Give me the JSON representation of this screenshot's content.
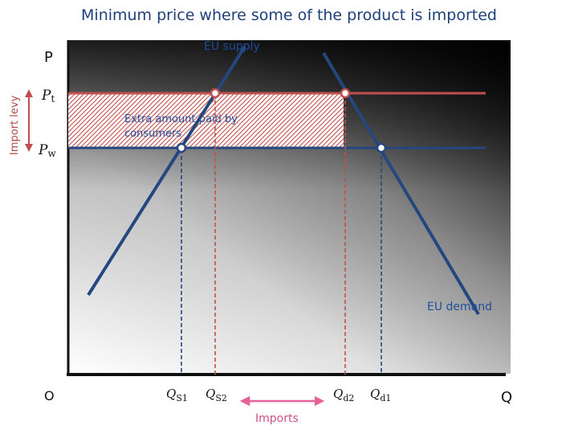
{
  "title": "Minimum price where some of the product is imported",
  "axes": {
    "y_label": "P",
    "x_label": "Q",
    "origin_label": "O"
  },
  "prices": {
    "pt": {
      "base": "P",
      "sub": "t"
    },
    "pw": {
      "base": "P",
      "sub": "w"
    }
  },
  "levy_label": "Import levy",
  "quantities": {
    "qs1": {
      "base": "Q",
      "sub": "S1"
    },
    "qs2": {
      "base": "Q",
      "sub": "S2"
    },
    "qd2": {
      "base": "Q",
      "sub": "d2"
    },
    "qd1": {
      "base": "Q",
      "sub": "d1"
    }
  },
  "curves": {
    "supply_label": "EU supply",
    "demand_label": "EU demand"
  },
  "area": {
    "line1": "Extra amount paid by",
    "line2": "consumers"
  },
  "imports_label": "Imports",
  "colors": {
    "curve": "#24477f",
    "pt_line": "#c0504d",
    "pw_line": "#24477f",
    "levy_arrow": "#c0504d",
    "imports_arrow": "#e8609a",
    "title": "#1f3f7a"
  }
}
